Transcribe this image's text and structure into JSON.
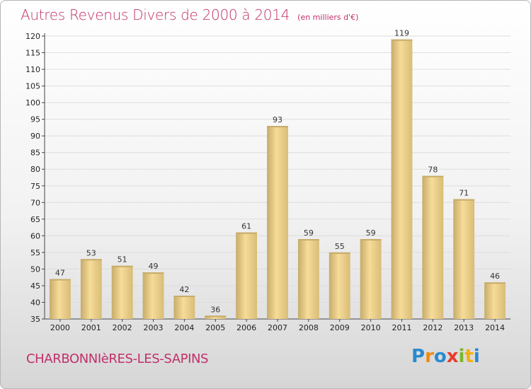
{
  "title": "Autres Revenus Divers de 2000 à 2014",
  "subtitle": "(en milliers d'€)",
  "place_name": "CHARBONNIèRES-LES-SAPINS",
  "logo": [
    "P",
    "r",
    "o",
    "x",
    "i",
    "t",
    "i"
  ],
  "colors": {
    "title": "#c0306a",
    "bar_light": "#f6dc98",
    "bar_dark": "#c7ab6a",
    "grid": "#dddddd"
  },
  "chart_data": {
    "type": "bar",
    "title": "Autres Revenus Divers de 2000 à 2014",
    "subtitle": "(en milliers d'€)",
    "xlabel": "",
    "ylabel": "",
    "ylim": [
      35,
      120
    ],
    "yticks": [
      35,
      40,
      45,
      50,
      55,
      60,
      65,
      70,
      75,
      80,
      85,
      90,
      95,
      100,
      105,
      110,
      115,
      120
    ],
    "grid": true,
    "legend": "none",
    "categories": [
      "2000",
      "2001",
      "2002",
      "2003",
      "2004",
      "2005",
      "2006",
      "2007",
      "2008",
      "2009",
      "2010",
      "2011",
      "2012",
      "2013",
      "2014"
    ],
    "values": [
      47,
      53,
      51,
      49,
      42,
      36,
      61,
      93,
      59,
      55,
      59,
      119,
      78,
      71,
      46
    ]
  }
}
